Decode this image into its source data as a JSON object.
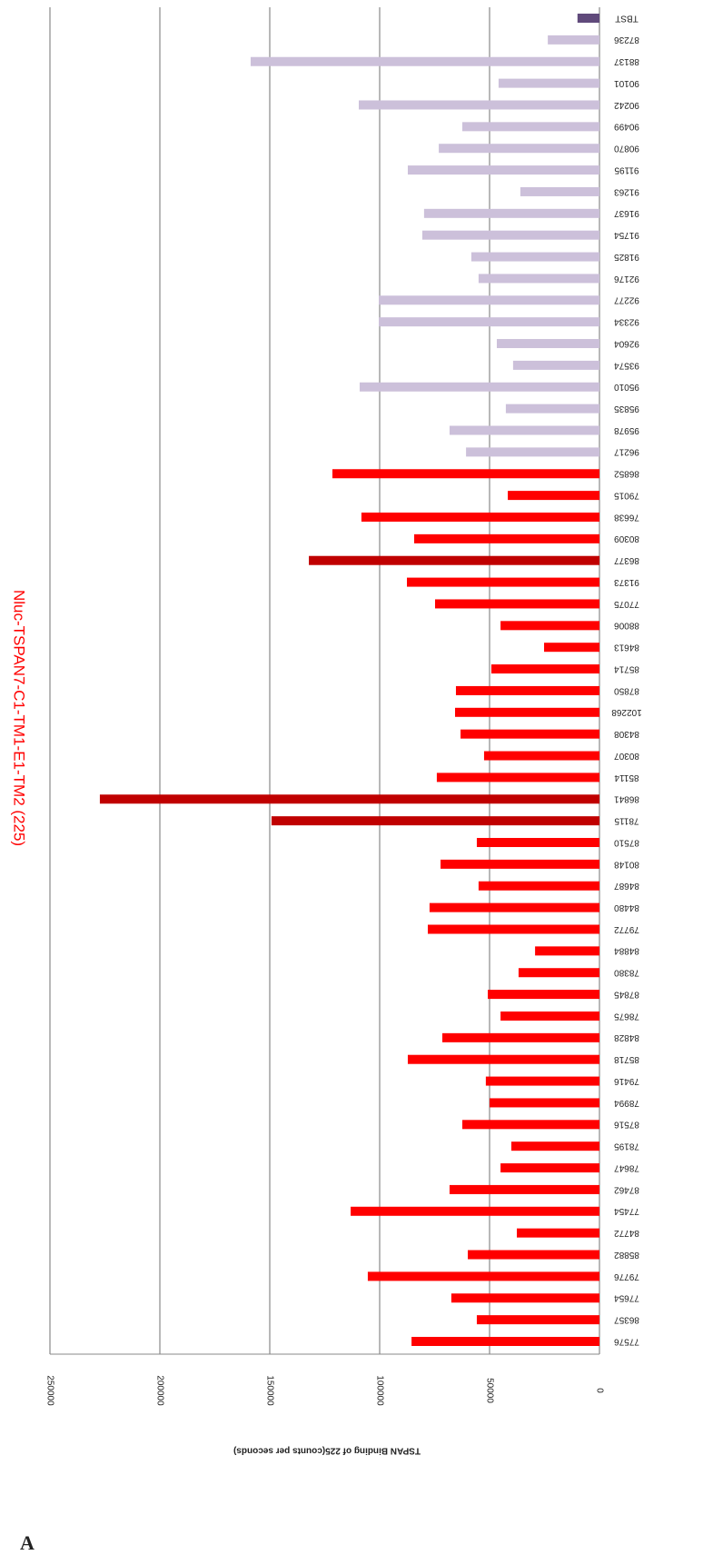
{
  "chart_data": {
    "type": "bar",
    "orientation": "horizontal",
    "panel_label": "A",
    "title": "Nluc-TSPAN7-C1-TM1-E1-TM2 (225)",
    "value_axis_label": "TSPAN Binding of 225(counts per seconds)",
    "categories": [
      "TBST",
      "87236",
      "88137",
      "90101",
      "90242",
      "90499",
      "90870",
      "91195",
      "91263",
      "91637",
      "91754",
      "91825",
      "92176",
      "92277",
      "92334",
      "92604",
      "93574",
      "95010",
      "95835",
      "95978",
      "96217",
      "86852",
      "79015",
      "76638",
      "80309",
      "86377",
      "91373",
      "77075",
      "88006",
      "84613",
      "85714",
      "87850",
      "102268",
      "84308",
      "80307",
      "85114",
      "86841",
      "78115",
      "87510",
      "80148",
      "84687",
      "84480",
      "79772",
      "84884",
      "78380",
      "87845",
      "78675",
      "84828",
      "85718",
      "79416",
      "78994",
      "87516",
      "78195",
      "78647",
      "87462",
      "77454",
      "84772",
      "85882",
      "79776",
      "77654",
      "86357",
      "77576"
    ],
    "values": [
      10000,
      23500,
      158700,
      45900,
      109500,
      62400,
      73100,
      87200,
      36000,
      79800,
      80600,
      58300,
      55000,
      100400,
      100400,
      46700,
      39300,
      109100,
      42600,
      68200,
      60700,
      121500,
      41700,
      108300,
      84300,
      132200,
      87600,
      74800,
      45000,
      25200,
      49200,
      65300,
      65700,
      63200,
      52500,
      74000,
      227300,
      149200,
      55800,
      72300,
      55000,
      77300,
      78100,
      29300,
      36800,
      50800,
      45000,
      71500,
      87200,
      51700,
      50000,
      62400,
      40100,
      45000,
      68200,
      113200,
      37600,
      59900,
      105400,
      67400,
      55800,
      85500
    ],
    "colors": [
      "#604a7b",
      "#ccc0da",
      "#ccc0da",
      "#ccc0da",
      "#ccc0da",
      "#ccc0da",
      "#ccc0da",
      "#ccc0da",
      "#ccc0da",
      "#ccc0da",
      "#ccc0da",
      "#ccc0da",
      "#ccc0da",
      "#ccc0da",
      "#ccc0da",
      "#ccc0da",
      "#ccc0da",
      "#ccc0da",
      "#ccc0da",
      "#ccc0da",
      "#ccc0da",
      "#ff0000",
      "#ff0000",
      "#ff0000",
      "#ff0000",
      "#c00000",
      "#ff0000",
      "#ff0000",
      "#ff0000",
      "#ff0000",
      "#ff0000",
      "#ff0000",
      "#ff0000",
      "#ff0000",
      "#ff0000",
      "#ff0000",
      "#c00000",
      "#c00000",
      "#ff0000",
      "#ff0000",
      "#ff0000",
      "#ff0000",
      "#ff0000",
      "#ff0000",
      "#ff0000",
      "#ff0000",
      "#ff0000",
      "#ff0000",
      "#ff0000",
      "#ff0000",
      "#ff0000",
      "#ff0000",
      "#ff0000",
      "#ff0000",
      "#ff0000",
      "#ff0000",
      "#ff0000",
      "#ff0000",
      "#ff0000",
      "#ff0000",
      "#ff0000",
      "#ff0000"
    ],
    "ylim": [
      0,
      250000
    ],
    "yticks": [
      0,
      50000,
      100000,
      150000,
      200000,
      250000
    ],
    "grid": true
  }
}
